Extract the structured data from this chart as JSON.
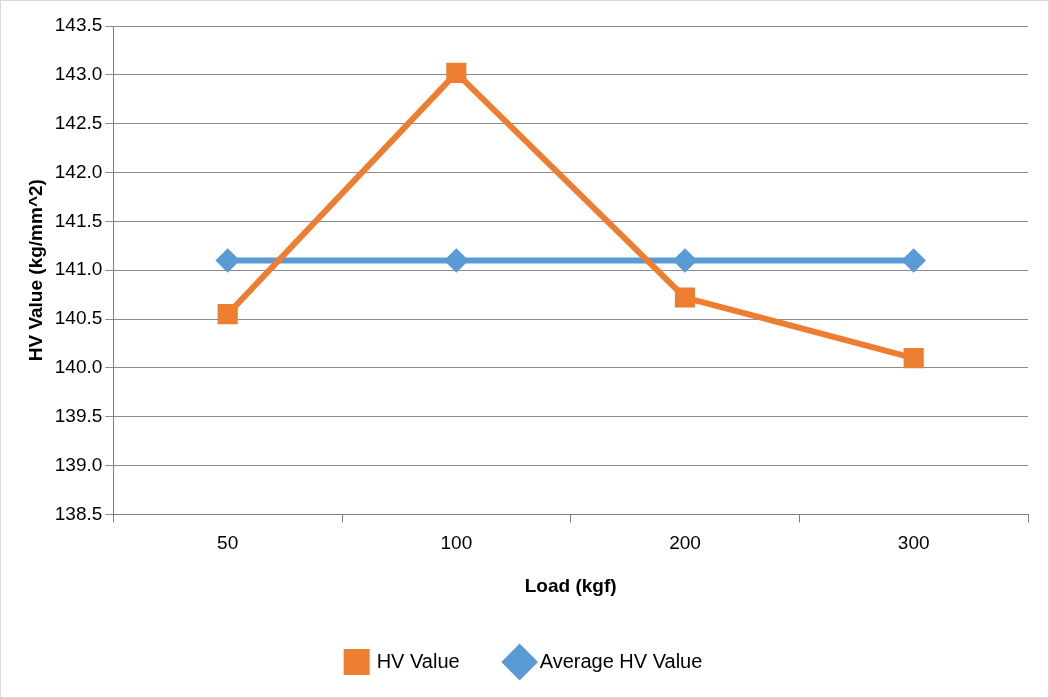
{
  "chart_data": {
    "type": "line",
    "xlabel": "Load (kgf)",
    "ylabel": "HV Value (kg/mm^2)",
    "categories": [
      "50",
      "100",
      "200",
      "300"
    ],
    "series": [
      {
        "name": "HV Value",
        "color": "#ed7d31",
        "marker": "square",
        "values": [
          140.55,
          143.02,
          140.72,
          140.1
        ]
      },
      {
        "name": "Average HV Value",
        "color": "#5b9bd5",
        "marker": "diamond",
        "values": [
          141.1,
          141.1,
          141.1,
          141.1
        ]
      }
    ],
    "ylim": [
      138.5,
      143.5
    ],
    "yticks": [
      138.5,
      {
        "value": 139,
        "label": "139.0"
      },
      139.5,
      {
        "value": 140,
        "label": "140.0"
      },
      140.5,
      {
        "value": 141,
        "label": "141.0"
      },
      141.5,
      {
        "value": 142,
        "label": "142.0"
      },
      142.5,
      {
        "value": 143,
        "label": "143.0"
      },
      143.5
    ],
    "grid": "y",
    "legend": "bottom",
    "line_style": "solid"
  }
}
